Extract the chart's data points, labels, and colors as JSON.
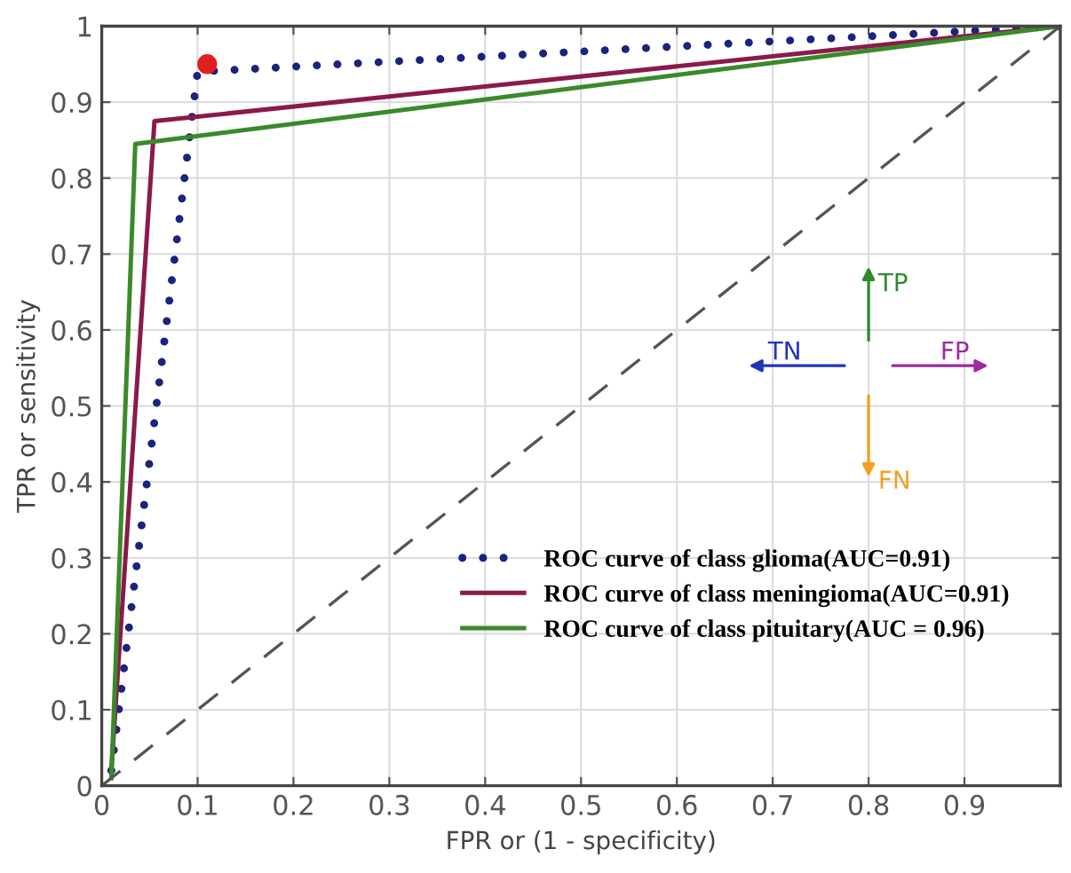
{
  "chart_data": {
    "type": "line",
    "xlabel": "FPR or (1 - specificity)",
    "ylabel": "TPR or sensitivity",
    "xlim": [
      0,
      1
    ],
    "ylim": [
      0,
      1
    ],
    "xticks": [
      0,
      0.1,
      0.2,
      0.3,
      0.4,
      0.5,
      0.6,
      0.7,
      0.8,
      0.9,
      {
        "value": 1,
        "label": null
      }
    ],
    "yticks": [
      0,
      0.1,
      0.2,
      0.3,
      0.4,
      0.5,
      0.6,
      0.7,
      0.8,
      0.9,
      1
    ],
    "grid": true,
    "legend": "bottom right",
    "marker": "none",
    "series": [
      {
        "name": "ROC curve of class glioma(AUC=0.91)",
        "color": "#1a237e",
        "line_style": "dotted",
        "x": [
          0.01,
          0.1,
          1
        ],
        "values": [
          0.02,
          0.94,
          1
        ]
      },
      {
        "name": "ROC curve of class meningioma(AUC=0.91)",
        "color": "#8b1a4a",
        "line_style": "solid",
        "x": [
          0.01,
          0.055,
          1
        ],
        "values": [
          0.02,
          0.875,
          1
        ]
      },
      {
        "name": "ROC curve of class pituitary(AUC = 0.96)",
        "color": "#3a8a2a",
        "line_style": "solid",
        "x": [
          0.01,
          0.035,
          1
        ],
        "values": [
          0.01,
          0.845,
          1
        ]
      },
      {
        "type": "line",
        "color": "#555555",
        "line_style": "dashed",
        "x": [
          0,
          1
        ],
        "values": [
          0,
          1
        ]
      },
      {
        "type": "scatter",
        "color": "#e02020",
        "marker": "circle",
        "x": [
          0.11
        ],
        "values": [
          0.95
        ]
      }
    ],
    "annotations": [
      "TP",
      "TN",
      "FP",
      "FN"
    ]
  }
}
